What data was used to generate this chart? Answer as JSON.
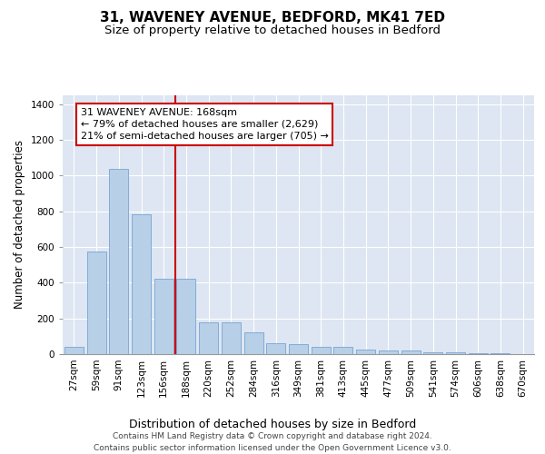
{
  "title_line1": "31, WAVENEY AVENUE, BEDFORD, MK41 7ED",
  "title_line2": "Size of property relative to detached houses in Bedford",
  "xlabel": "Distribution of detached houses by size in Bedford",
  "ylabel": "Number of detached properties",
  "categories": [
    "27sqm",
    "59sqm",
    "91sqm",
    "123sqm",
    "156sqm",
    "188sqm",
    "220sqm",
    "252sqm",
    "284sqm",
    "316sqm",
    "349sqm",
    "381sqm",
    "413sqm",
    "445sqm",
    "477sqm",
    "509sqm",
    "541sqm",
    "574sqm",
    "606sqm",
    "638sqm",
    "670sqm"
  ],
  "values": [
    43,
    573,
    1040,
    785,
    420,
    420,
    178,
    178,
    120,
    60,
    58,
    43,
    40,
    25,
    22,
    18,
    12,
    10,
    7,
    4,
    2
  ],
  "bar_color": "#b8cfe8",
  "bar_edge_color": "#6699cc",
  "vline_x": 4.5,
  "vline_color": "#cc0000",
  "annotation_text": "31 WAVENEY AVENUE: 168sqm\n← 79% of detached houses are smaller (2,629)\n21% of semi-detached houses are larger (705) →",
  "annotation_box_facecolor": "#ffffff",
  "annotation_box_edgecolor": "#cc0000",
  "ylim": [
    0,
    1450
  ],
  "yticks": [
    0,
    200,
    400,
    600,
    800,
    1000,
    1200,
    1400
  ],
  "bg_color": "#dde6f2",
  "title_fontsize": 11,
  "subtitle_fontsize": 9.5,
  "ylabel_fontsize": 8.5,
  "xlabel_fontsize": 9,
  "tick_fontsize": 7.5,
  "annotation_fontsize": 8,
  "footer_fontsize": 6.5,
  "footer_line1": "Contains HM Land Registry data © Crown copyright and database right 2024.",
  "footer_line2": "Contains public sector information licensed under the Open Government Licence v3.0."
}
